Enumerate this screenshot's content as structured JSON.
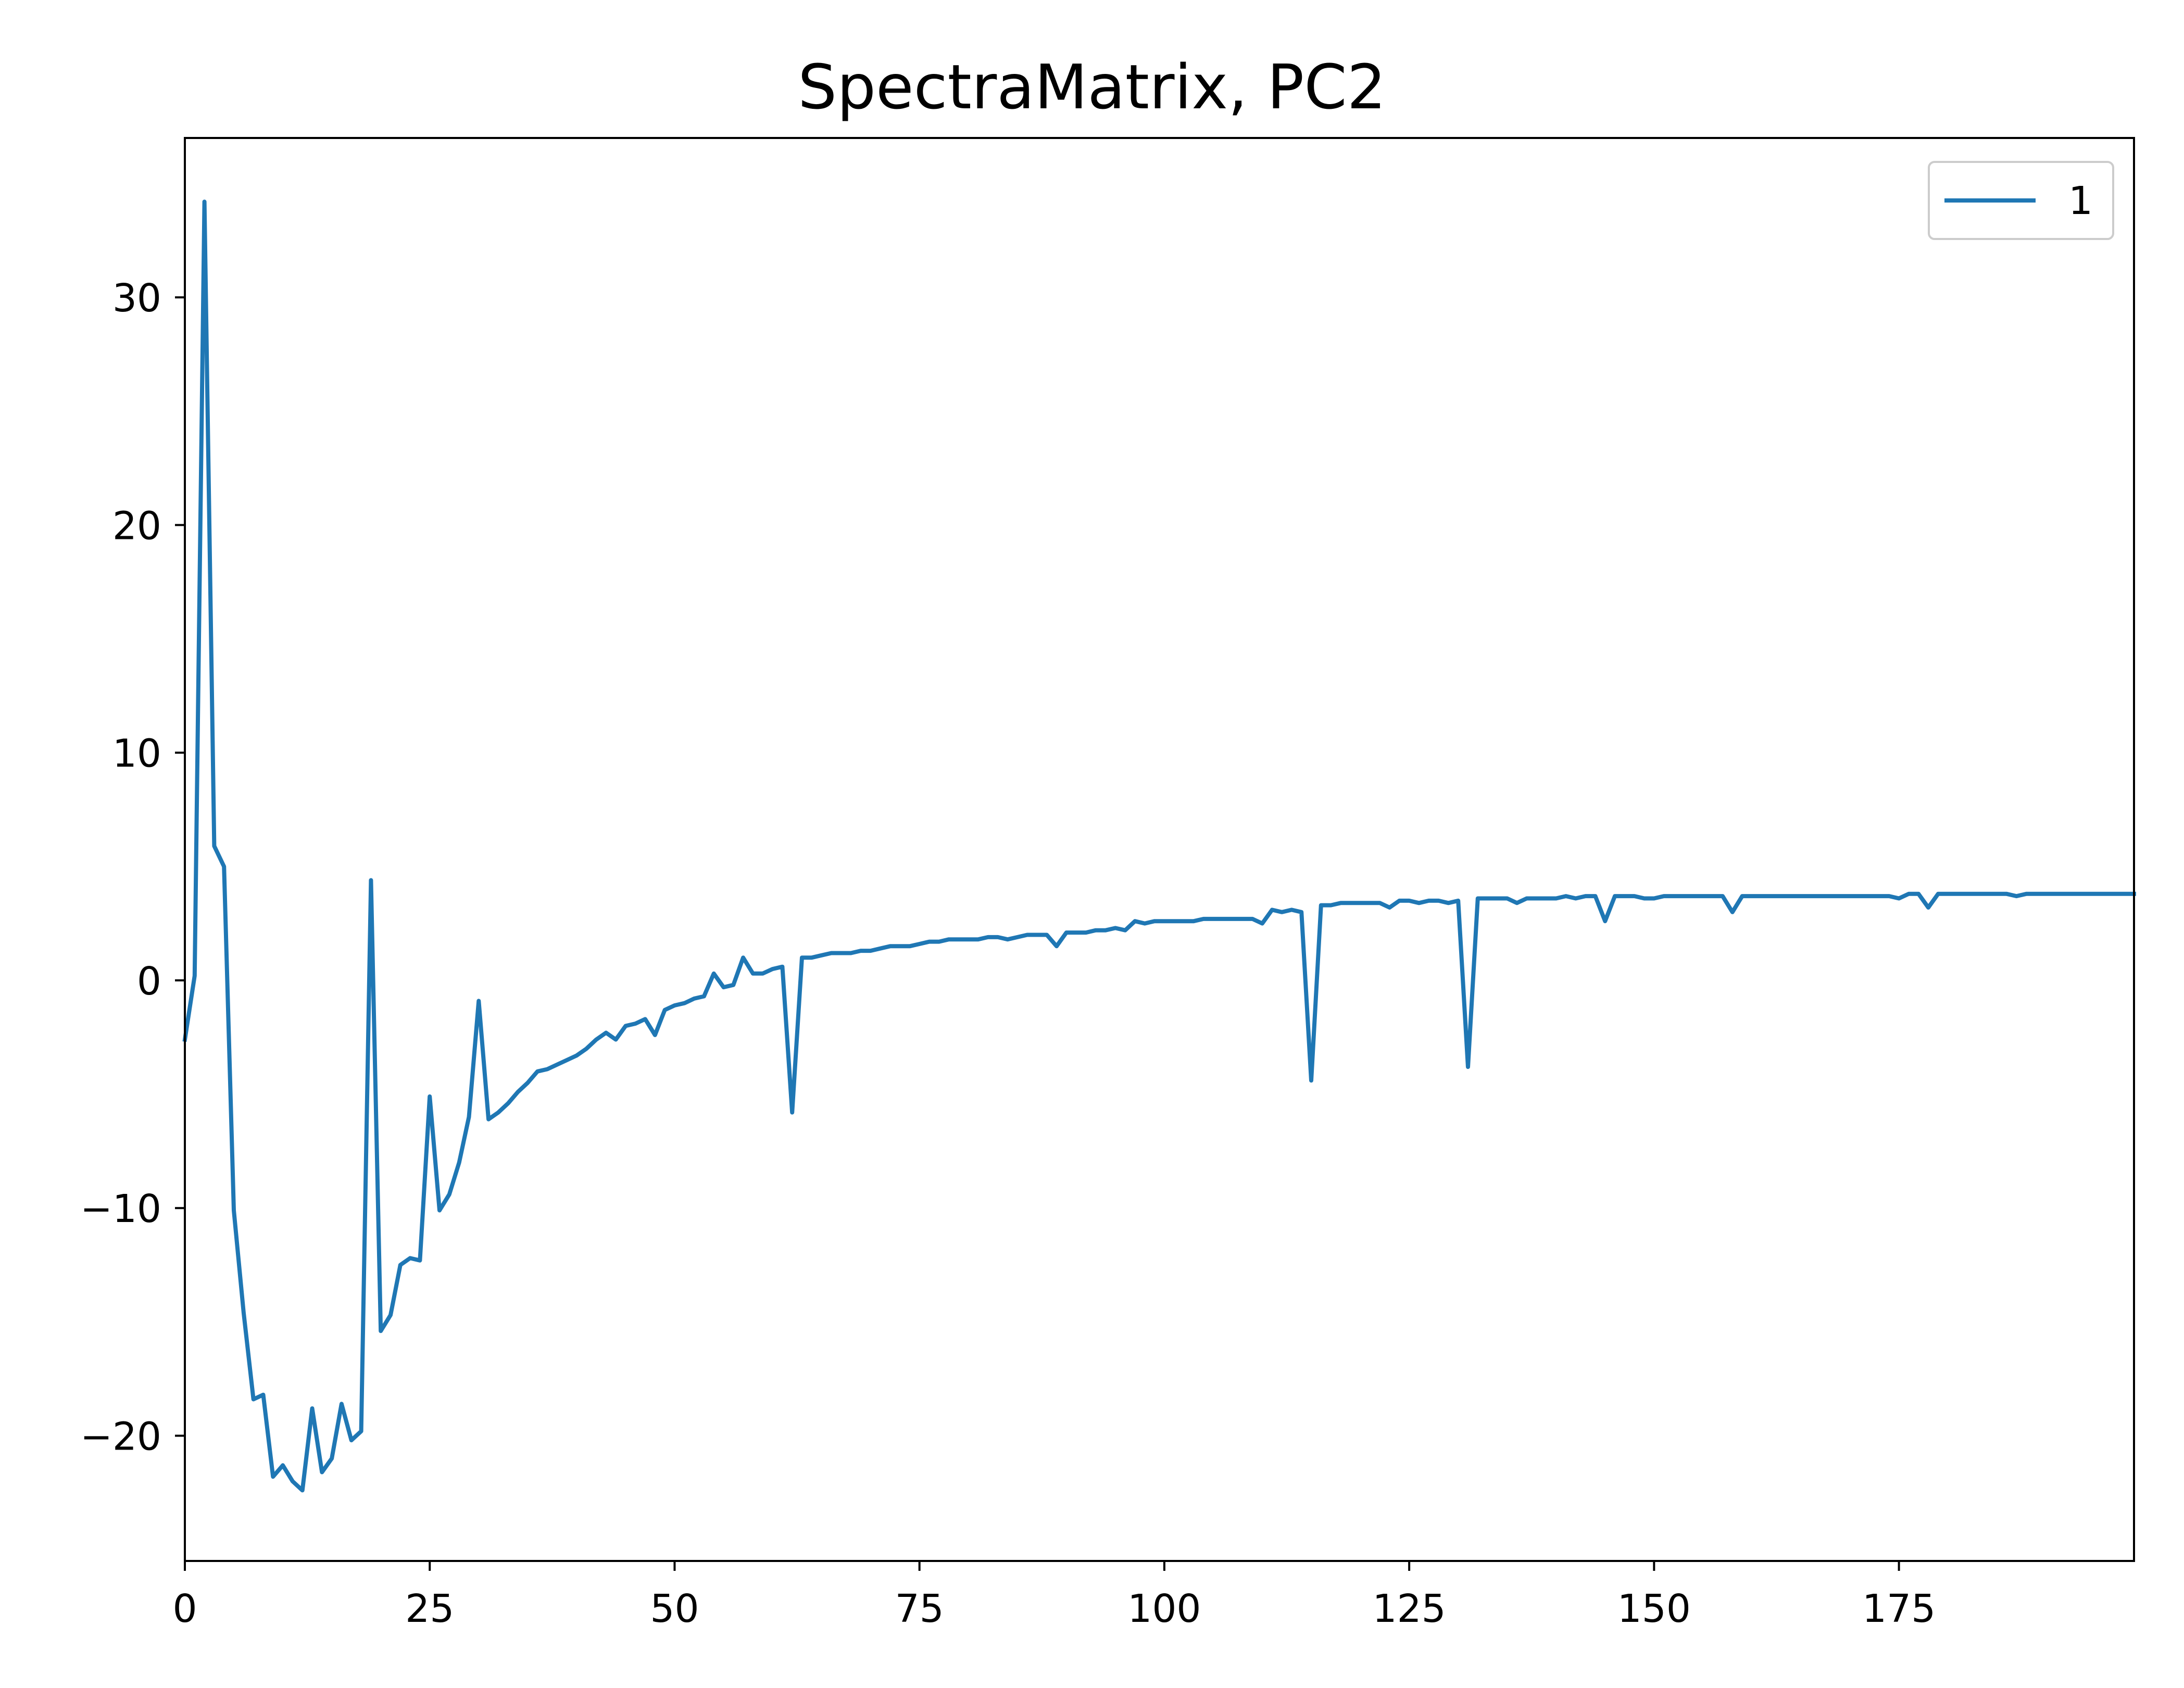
{
  "colors": {
    "series": "#1f77b4",
    "axes": "#000000",
    "background": "#ffffff",
    "legend_border": "#cccccc"
  },
  "chart_data": {
    "type": "line",
    "title": "SpectraMatrix, PC2",
    "xlabel": "",
    "ylabel": "",
    "xlim": [
      0,
      199
    ],
    "ylim": [
      -25.5,
      37
    ],
    "x_ticks": [
      0,
      25,
      50,
      75,
      100,
      125,
      150,
      175
    ],
    "x_tick_labels": [
      "0",
      "25",
      "50",
      "75",
      "100",
      "125",
      "150",
      "175"
    ],
    "y_ticks": [
      -20,
      -10,
      0,
      10,
      20,
      30
    ],
    "y_tick_labels": [
      "−20",
      "−10",
      "0",
      "10",
      "20",
      "30"
    ],
    "grid": false,
    "legend": {
      "position": "top-right",
      "entries": [
        "1"
      ]
    },
    "series": [
      {
        "name": "1",
        "color": "#1f77b4",
        "values": [
          -2.6,
          0.2,
          34.2,
          5.9,
          5.0,
          -10.1,
          -14.6,
          -18.4,
          -18.2,
          -21.8,
          -21.3,
          -22.0,
          -22.4,
          -18.8,
          -21.6,
          -21.0,
          -18.6,
          -20.2,
          -19.8,
          4.4,
          -15.4,
          -14.7,
          -12.5,
          -12.2,
          -12.3,
          -5.1,
          -10.1,
          -9.4,
          -8.0,
          -6.0,
          -0.9,
          -6.1,
          -5.8,
          -5.4,
          -4.9,
          -4.5,
          -4.0,
          -3.9,
          -3.7,
          -3.5,
          -3.3,
          -3.0,
          -2.6,
          -2.3,
          -2.6,
          -2.0,
          -1.9,
          -1.7,
          -2.4,
          -1.3,
          -1.1,
          -1.0,
          -0.8,
          -0.7,
          0.3,
          -0.3,
          -0.2,
          1.0,
          0.3,
          0.3,
          0.5,
          0.6,
          -5.8,
          1.0,
          1.0,
          1.1,
          1.2,
          1.2,
          1.2,
          1.3,
          1.3,
          1.4,
          1.5,
          1.5,
          1.5,
          1.6,
          1.7,
          1.7,
          1.8,
          1.8,
          1.8,
          1.8,
          1.9,
          1.9,
          1.8,
          1.9,
          2.0,
          2.0,
          2.0,
          1.5,
          2.1,
          2.1,
          2.1,
          2.2,
          2.2,
          2.3,
          2.2,
          2.6,
          2.5,
          2.6,
          2.6,
          2.6,
          2.6,
          2.6,
          2.7,
          2.7,
          2.7,
          2.7,
          2.7,
          2.7,
          2.5,
          3.1,
          3.0,
          3.1,
          3.0,
          -4.4,
          3.3,
          3.3,
          3.4,
          3.4,
          3.4,
          3.4,
          3.4,
          3.2,
          3.5,
          3.5,
          3.4,
          3.5,
          3.5,
          3.4,
          3.5,
          -3.8,
          3.6,
          3.6,
          3.6,
          3.6,
          3.4,
          3.6,
          3.6,
          3.6,
          3.6,
          3.7,
          3.6,
          3.7,
          3.7,
          2.6,
          3.7,
          3.7,
          3.7,
          3.6,
          3.6,
          3.7,
          3.7,
          3.7,
          3.7,
          3.7,
          3.7,
          3.7,
          3.0,
          3.7,
          3.7,
          3.7,
          3.7,
          3.7,
          3.7,
          3.7,
          3.7,
          3.7,
          3.7,
          3.7,
          3.7,
          3.7,
          3.7,
          3.7,
          3.7,
          3.6,
          3.8,
          3.8,
          3.2,
          3.8,
          3.8,
          3.8,
          3.8,
          3.8,
          3.8,
          3.8,
          3.8,
          3.7,
          3.8,
          3.8,
          3.8,
          3.8,
          3.8,
          3.8,
          3.8,
          3.8,
          3.8,
          3.8,
          3.8,
          3.8
        ]
      }
    ]
  }
}
